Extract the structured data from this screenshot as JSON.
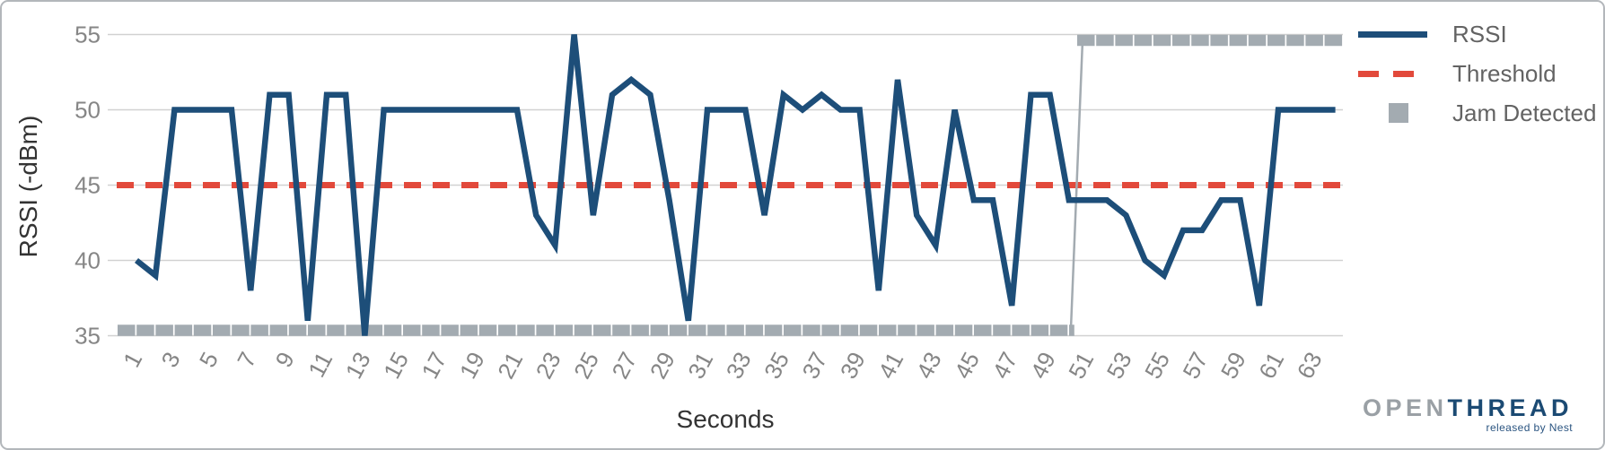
{
  "legend": {
    "items": [
      {
        "label": "RSSI"
      },
      {
        "label": "Threshold"
      },
      {
        "label": "Jam Detected"
      }
    ]
  },
  "axes": {
    "y_title": "RSSI (-dBm)",
    "x_title": "Seconds",
    "y_ticks": [
      55,
      50,
      45,
      40,
      35
    ],
    "x_ticks": [
      1,
      3,
      5,
      7,
      9,
      11,
      13,
      15,
      17,
      19,
      21,
      23,
      25,
      27,
      29,
      31,
      33,
      35,
      37,
      39,
      41,
      43,
      45,
      47,
      49,
      51,
      53,
      55,
      57,
      59,
      61,
      63
    ]
  },
  "logo": {
    "part1": "OPEN",
    "part2": "THREAD",
    "tagline": "released by Nest"
  },
  "chart_data": {
    "type": "line",
    "title": "",
    "xlabel": "Seconds",
    "ylabel": "RSSI (-dBm)",
    "xlim": [
      1,
      64
    ],
    "ylim": [
      35,
      55
    ],
    "grid": "horizontal",
    "x_start": 1,
    "x_step": 1,
    "series": [
      {
        "name": "RSSI",
        "type": "line",
        "color": "#1d4e79",
        "values": [
          40,
          39,
          50,
          50,
          50,
          50,
          38,
          51,
          51,
          36,
          51,
          51,
          35,
          50,
          50,
          50,
          50,
          50,
          50,
          50,
          50,
          43,
          41,
          55,
          43,
          51,
          52,
          51,
          44,
          36,
          50,
          50,
          50,
          43,
          51,
          50,
          51,
          50,
          50,
          38,
          52,
          43,
          41,
          50,
          44,
          44,
          37,
          51,
          51,
          44,
          44,
          44,
          43,
          40,
          39,
          42,
          42,
          44,
          44,
          37,
          50,
          50,
          50,
          50
        ]
      },
      {
        "name": "Threshold",
        "type": "horizontal-line",
        "style": "dashed",
        "color": "#e2493b",
        "value": 45
      },
      {
        "name": "Jam Detected",
        "type": "step-band",
        "color": "#a3abb1",
        "segments": [
          {
            "x_from": 1,
            "x_to": 50,
            "value": 35,
            "state": "no-jam"
          },
          {
            "x_from": 51,
            "x_to": 64,
            "value": 55,
            "state": "jam-detected"
          }
        ]
      }
    ]
  }
}
